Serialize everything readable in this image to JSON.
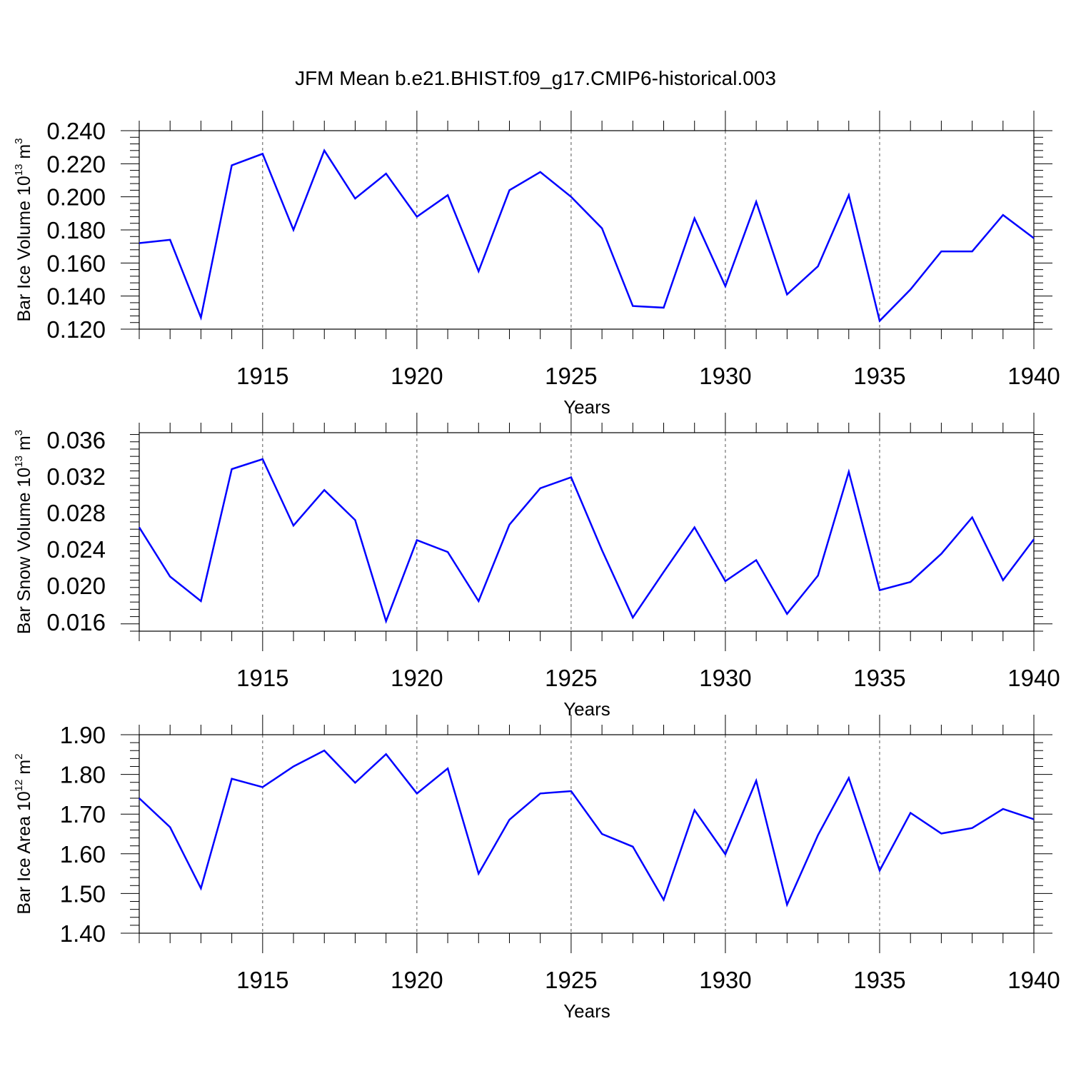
{
  "title": "JFM Mean b.e21.BHIST.f09_g17.CMIP6-historical.003",
  "colors": {
    "line": "#0000ff",
    "axis": "#000000",
    "grid": "#555555"
  },
  "chart_data": [
    {
      "type": "line",
      "xlabel": "Years",
      "ylabel": {
        "text": "Bar Ice Volume 10",
        "exp": "13",
        "unit": " m",
        "unit_exp": "3"
      },
      "xlim": [
        1911,
        1940
      ],
      "ylim": [
        0.12,
        0.24
      ],
      "yticks": [
        "0.120",
        "0.140",
        "0.160",
        "0.180",
        "0.200",
        "0.220",
        "0.240"
      ],
      "xticks": [
        "1915",
        "1920",
        "1925",
        "1930",
        "1935",
        "1940"
      ],
      "grid": "vertical dashed at labeled years",
      "x": [
        1911,
        1912,
        1913,
        1914,
        1915,
        1916,
        1917,
        1918,
        1919,
        1920,
        1921,
        1922,
        1923,
        1924,
        1925,
        1926,
        1927,
        1928,
        1929,
        1930,
        1931,
        1932,
        1933,
        1934,
        1935,
        1936,
        1937,
        1938,
        1939,
        1940
      ],
      "values": [
        0.172,
        0.174,
        0.127,
        0.219,
        0.226,
        0.18,
        0.228,
        0.199,
        0.214,
        0.188,
        0.201,
        0.155,
        0.204,
        0.215,
        0.2,
        0.181,
        0.134,
        0.133,
        0.187,
        0.146,
        0.197,
        0.141,
        0.158,
        0.201,
        0.125,
        0.144,
        0.167,
        0.167,
        0.189,
        0.175
      ]
    },
    {
      "type": "line",
      "xlabel": "Years",
      "ylabel": {
        "text": "Bar Snow Volume 10",
        "exp": "13",
        "unit": " m",
        "unit_exp": "3"
      },
      "xlim": [
        1911,
        1940
      ],
      "ylim": [
        0.015,
        0.0368
      ],
      "yticks": [
        "0.016",
        "0.020",
        "0.024",
        "0.028",
        "0.032",
        "0.036"
      ],
      "xticks": [
        "1915",
        "1920",
        "1925",
        "1930",
        "1935",
        "1940"
      ],
      "grid": "vertical dashed at labeled years",
      "x": [
        1911,
        1912,
        1913,
        1914,
        1915,
        1916,
        1917,
        1918,
        1919,
        1920,
        1921,
        1922,
        1923,
        1924,
        1925,
        1926,
        1927,
        1928,
        1929,
        1930,
        1931,
        1932,
        1933,
        1934,
        1935,
        1936,
        1937,
        1938,
        1939,
        1940
      ],
      "values": [
        0.0264,
        0.021,
        0.0183,
        0.0328,
        0.0339,
        0.0266,
        0.0305,
        0.0272,
        0.0161,
        0.025,
        0.0237,
        0.0183,
        0.0267,
        0.0307,
        0.0319,
        0.0239,
        0.0165,
        0.0215,
        0.0264,
        0.0205,
        0.0228,
        0.0169,
        0.0211,
        0.0325,
        0.0195,
        0.0204,
        0.0235,
        0.0275,
        0.0206,
        0.0251
      ]
    },
    {
      "type": "line",
      "xlabel": "Years",
      "ylabel": {
        "text": "Bar Ice Area 10",
        "exp": "12",
        "unit": " m",
        "unit_exp": "2"
      },
      "xlim": [
        1911,
        1940
      ],
      "ylim": [
        1.4,
        1.9
      ],
      "yticks": [
        "1.40",
        "1.50",
        "1.60",
        "1.70",
        "1.80",
        "1.90"
      ],
      "xticks": [
        "1915",
        "1920",
        "1925",
        "1930",
        "1935",
        "1940"
      ],
      "grid": "vertical dashed at labeled years",
      "x": [
        1911,
        1912,
        1913,
        1914,
        1915,
        1916,
        1917,
        1918,
        1919,
        1920,
        1921,
        1922,
        1923,
        1924,
        1925,
        1926,
        1927,
        1928,
        1929,
        1930,
        1931,
        1932,
        1933,
        1934,
        1935,
        1936,
        1937,
        1938,
        1939,
        1940
      ],
      "values": [
        1.74,
        1.667,
        1.513,
        1.789,
        1.768,
        1.82,
        1.86,
        1.779,
        1.851,
        1.752,
        1.815,
        1.55,
        1.686,
        1.752,
        1.758,
        1.65,
        1.618,
        1.484,
        1.71,
        1.599,
        1.784,
        1.472,
        1.647,
        1.791,
        1.558,
        1.703,
        1.651,
        1.665,
        1.713,
        1.687
      ]
    }
  ]
}
